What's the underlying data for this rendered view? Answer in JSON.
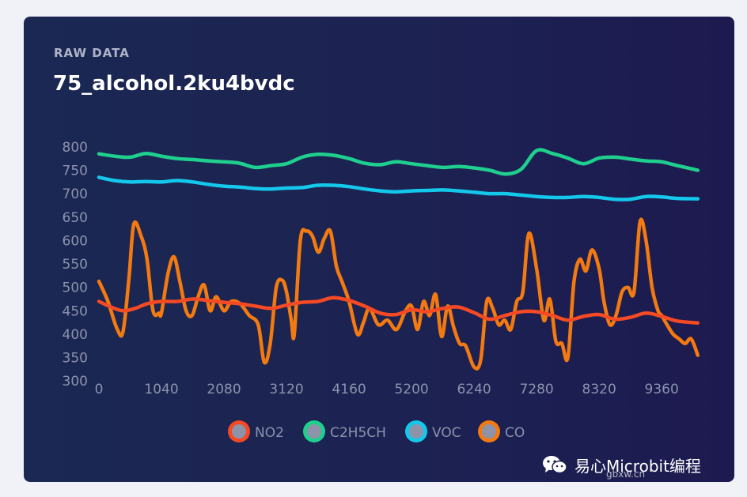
{
  "card": {
    "subtitle": "RAW DATA",
    "title": "75_alcohol.2ku4bvdc"
  },
  "watermark": {
    "text": "易心Microbit编程",
    "sub": "gbxw.cn"
  },
  "chart_data": {
    "type": "line",
    "title": "75_alcohol.2ku4bvdc",
    "xlabel": "",
    "ylabel": "",
    "xlim": [
      0,
      9700
    ],
    "ylim": [
      270,
      820
    ],
    "xticks": [
      0,
      1040,
      2080,
      3120,
      4160,
      5200,
      6240,
      7280,
      8320,
      9360
    ],
    "xtick_labels": [
      "0",
      "1040",
      "2080",
      "3120",
      "4160",
      "5200",
      "6240",
      "7280",
      "8320",
      "9360"
    ],
    "yticks": [
      300,
      350,
      400,
      450,
      500,
      550,
      600,
      650,
      700,
      750,
      800
    ],
    "ytick_labels": [
      "300",
      "350",
      "400",
      "450",
      "500",
      "550",
      "600",
      "650",
      "700",
      "750",
      "800"
    ],
    "grid": false,
    "legend": "bottom-center",
    "series": [
      {
        "name": "NO2",
        "color": "#f54a24",
        "x": [
          0,
          200,
          400,
          600,
          800,
          1040,
          1300,
          1560,
          1820,
          2080,
          2340,
          2600,
          2860,
          3120,
          3380,
          3640,
          3900,
          4160,
          4420,
          4680,
          4940,
          5200,
          5460,
          5720,
          5980,
          6240,
          6500,
          6760,
          7020,
          7280,
          7540,
          7800,
          8060,
          8320,
          8580,
          8840,
          9100,
          9360,
          9620,
          9960
        ],
        "values": [
          470,
          458,
          450,
          455,
          465,
          470,
          470,
          475,
          472,
          468,
          465,
          460,
          455,
          462,
          468,
          470,
          478,
          472,
          460,
          445,
          442,
          452,
          448,
          455,
          458,
          446,
          432,
          440,
          448,
          448,
          440,
          430,
          438,
          442,
          432,
          436,
          445,
          438,
          428,
          424
        ]
      },
      {
        "name": "C2H5CH",
        "color": "#1fcf8e",
        "x": [
          0,
          260,
          520,
          780,
          1040,
          1300,
          1560,
          1820,
          2080,
          2340,
          2600,
          2860,
          3120,
          3380,
          3640,
          3900,
          4160,
          4420,
          4680,
          4940,
          5200,
          5460,
          5720,
          5980,
          6240,
          6500,
          6760,
          7020,
          7280,
          7540,
          7800,
          8060,
          8320,
          8580,
          8840,
          9100,
          9360,
          9620,
          9960
        ],
        "values": [
          785,
          780,
          778,
          786,
          780,
          775,
          773,
          770,
          768,
          765,
          756,
          760,
          764,
          778,
          784,
          782,
          775,
          765,
          762,
          768,
          764,
          760,
          756,
          758,
          755,
          750,
          742,
          752,
          792,
          786,
          776,
          764,
          776,
          778,
          774,
          770,
          768,
          760,
          750
        ]
      },
      {
        "name": "VOC",
        "color": "#14c8ec",
        "x": [
          0,
          260,
          520,
          780,
          1040,
          1300,
          1560,
          1820,
          2080,
          2340,
          2600,
          2860,
          3120,
          3380,
          3640,
          3900,
          4160,
          4420,
          4680,
          4940,
          5200,
          5460,
          5720,
          5980,
          6240,
          6500,
          6760,
          7020,
          7280,
          7540,
          7800,
          8060,
          8320,
          8580,
          8840,
          9100,
          9360,
          9620,
          9960
        ],
        "values": [
          735,
          728,
          725,
          726,
          725,
          728,
          725,
          720,
          716,
          714,
          711,
          710,
          712,
          713,
          718,
          718,
          715,
          710,
          706,
          704,
          706,
          707,
          708,
          706,
          703,
          700,
          700,
          697,
          694,
          692,
          692,
          694,
          692,
          688,
          688,
          694,
          693,
          690,
          689
        ]
      },
      {
        "name": "CO",
        "color": "#f37a10",
        "x": [
          0,
          150,
          300,
          400,
          500,
          580,
          700,
          800,
          900,
          1000,
          1040,
          1150,
          1250,
          1350,
          1450,
          1550,
          1650,
          1750,
          1850,
          1950,
          2080,
          2200,
          2350,
          2500,
          2650,
          2750,
          2850,
          2950,
          3050,
          3120,
          3200,
          3250,
          3350,
          3450,
          3550,
          3650,
          3750,
          3850,
          3950,
          4050,
          4160,
          4300,
          4400,
          4500,
          4650,
          4800,
          4950,
          5100,
          5200,
          5300,
          5400,
          5500,
          5600,
          5700,
          5800,
          5900,
          6000,
          6100,
          6240,
          6350,
          6450,
          6550,
          6650,
          6750,
          6850,
          6950,
          7050,
          7150,
          7280,
          7400,
          7500,
          7600,
          7700,
          7800,
          7900,
          8000,
          8100,
          8200,
          8320,
          8400,
          8500,
          8600,
          8700,
          8800,
          8900,
          9000,
          9100,
          9200,
          9300,
          9360,
          9450,
          9550,
          9650,
          9750,
          9850,
          9960
        ],
        "values": [
          513,
          470,
          412,
          405,
          520,
          635,
          610,
          560,
          450,
          445,
          445,
          530,
          565,
          510,
          450,
          440,
          480,
          505,
          450,
          480,
          450,
          470,
          465,
          440,
          420,
          340,
          380,
          500,
          515,
          490,
          430,
          400,
          600,
          620,
          610,
          575,
          605,
          620,
          545,
          510,
          470,
          400,
          425,
          455,
          420,
          430,
          410,
          450,
          460,
          410,
          470,
          440,
          485,
          395,
          460,
          415,
          380,
          375,
          330,
          345,
          470,
          455,
          420,
          430,
          410,
          470,
          490,
          615,
          540,
          430,
          475,
          385,
          380,
          350,
          510,
          560,
          535,
          580,
          540,
          470,
          420,
          440,
          490,
          500,
          490,
          640,
          600,
          500,
          450,
          440,
          420,
          400,
          390,
          380,
          390,
          355
        ]
      }
    ]
  }
}
